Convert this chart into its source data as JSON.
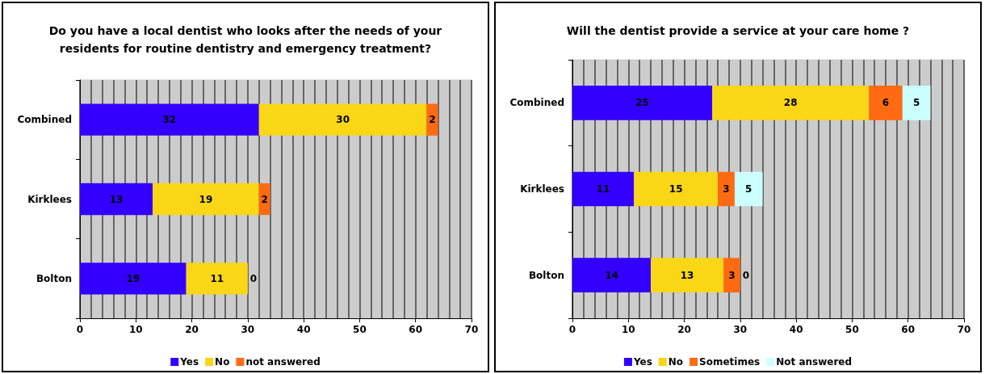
{
  "chart_data": [
    {
      "type": "bar",
      "orientation": "horizontal",
      "stacked": true,
      "title": "Do you have a local dentist who looks after the needs of your\nresidents for routine dentistry and emergency treatment?",
      "categories": [
        "Combined",
        "Kirklees",
        "Bolton"
      ],
      "series": [
        {
          "name": "Yes",
          "color": "#3300ff",
          "values": [
            32,
            13,
            19
          ]
        },
        {
          "name": "No",
          "color": "#f9d616",
          "values": [
            30,
            19,
            11
          ]
        },
        {
          "name": "not answered",
          "color": "#ff6a13",
          "values": [
            2,
            2,
            0
          ]
        }
      ],
      "xlim": [
        0,
        70
      ],
      "xticks": [
        0,
        10,
        20,
        30,
        40,
        50,
        60,
        70
      ],
      "grid": "x",
      "legend": "bottom",
      "data_labels": true
    },
    {
      "type": "bar",
      "orientation": "horizontal",
      "stacked": true,
      "title": "Will the dentist provide a service at your care home ?",
      "categories": [
        "Combined",
        "Kirklees",
        "Bolton"
      ],
      "series": [
        {
          "name": "Yes",
          "color": "#3300ff",
          "values": [
            25,
            11,
            14
          ]
        },
        {
          "name": "No",
          "color": "#f9d616",
          "values": [
            28,
            15,
            13
          ]
        },
        {
          "name": "Sometimes",
          "color": "#ff6a13",
          "values": [
            6,
            3,
            3
          ]
        },
        {
          "name": "Not answered",
          "color": "#ccffff",
          "values": [
            5,
            5,
            0
          ]
        }
      ],
      "xlim": [
        0,
        70
      ],
      "xticks": [
        0,
        10,
        20,
        30,
        40,
        50,
        60,
        70
      ],
      "grid": "x",
      "legend": "bottom",
      "data_labels": true
    }
  ]
}
